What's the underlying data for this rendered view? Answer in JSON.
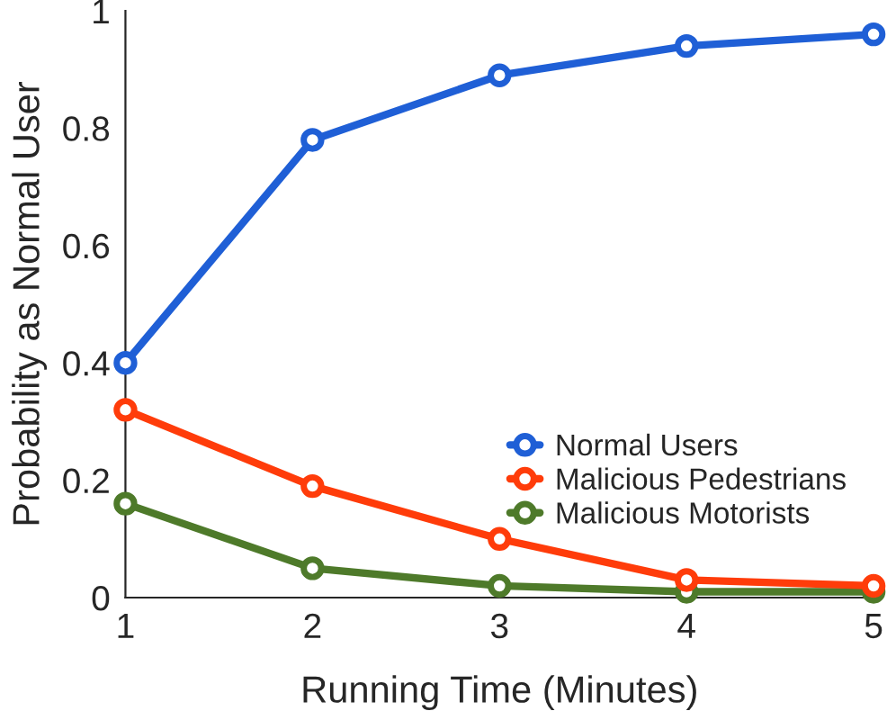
{
  "chart_data": {
    "type": "line",
    "xlabel": "Running Time (Minutes)",
    "ylabel": "Probability as Normal User",
    "x": [
      1,
      2,
      3,
      4,
      5
    ],
    "series": [
      {
        "name": "Normal Users",
        "color": "#1f5fd6",
        "values": [
          0.4,
          0.78,
          0.89,
          0.94,
          0.96
        ]
      },
      {
        "name": "Malicious Pedestrians",
        "color": "#ff3c0a",
        "values": [
          0.32,
          0.19,
          0.1,
          0.03,
          0.02
        ]
      },
      {
        "name": "Malicious Motorists",
        "color": "#4e7a2a",
        "values": [
          0.16,
          0.05,
          0.02,
          0.01,
          0.01
        ]
      }
    ],
    "xlim": [
      1,
      5
    ],
    "xticks": [
      1,
      2,
      3,
      4,
      5
    ],
    "ylim": [
      0,
      1
    ],
    "yticks": [
      0,
      0.2,
      0.4,
      0.6,
      0.8,
      1
    ],
    "grid": false,
    "legend": "lower right",
    "marker": "circle",
    "line_style": "solid"
  }
}
